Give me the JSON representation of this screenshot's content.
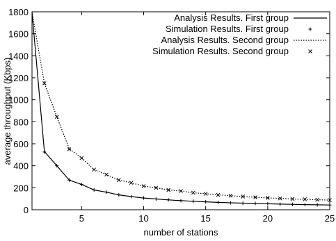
{
  "chart_data": {
    "type": "line",
    "title": "",
    "xlabel": "number of stations",
    "ylabel": "average throughput (Kbps)",
    "xlim": [
      1,
      25
    ],
    "ylim": [
      0,
      1800
    ],
    "xticks": [
      5,
      10,
      15,
      20,
      25
    ],
    "yticks": [
      0,
      200,
      400,
      600,
      800,
      1000,
      1200,
      1400,
      1600,
      1800
    ],
    "grid": false,
    "legend_position": "top-right",
    "series": [
      {
        "name": "Analysis Results. First group",
        "style": "solid-line",
        "x": [
          1,
          2,
          3,
          4,
          5,
          6,
          7,
          8,
          9,
          10,
          11,
          12,
          13,
          14,
          15,
          16,
          17,
          18,
          19,
          20,
          21,
          22,
          23,
          24,
          25
        ],
        "y": [
          1800,
          530,
          400,
          270,
          230,
          180,
          160,
          135,
          120,
          107,
          98,
          90,
          83,
          77,
          72,
          67,
          63,
          60,
          57,
          54,
          51,
          49,
          47,
          45,
          43
        ]
      },
      {
        "name": "Simulation Results. First group",
        "style": "plus-markers",
        "x": [
          2,
          3,
          4,
          5,
          6,
          7,
          8,
          9,
          10,
          11,
          12,
          13,
          14,
          15,
          16,
          17,
          18,
          19,
          20,
          21,
          22,
          23,
          24,
          25
        ],
        "y": [
          525,
          400,
          270,
          230,
          180,
          160,
          135,
          120,
          107,
          98,
          90,
          83,
          77,
          72,
          67,
          63,
          60,
          57,
          54,
          51,
          49,
          47,
          45,
          43
        ]
      },
      {
        "name": "Analysis Results. Second group",
        "style": "dotted-line",
        "x": [
          1,
          2,
          3,
          4,
          5,
          6,
          7,
          8,
          9,
          10,
          11,
          12,
          13,
          14,
          15,
          16,
          17,
          18,
          19,
          20,
          21,
          22,
          23,
          24,
          25
        ],
        "y": [
          1800,
          1150,
          845,
          555,
          470,
          365,
          320,
          270,
          245,
          215,
          200,
          180,
          170,
          155,
          145,
          135,
          128,
          120,
          113,
          108,
          103,
          98,
          95,
          91,
          88
        ]
      },
      {
        "name": "Simulation Results. Second group",
        "style": "x-markers",
        "x": [
          2,
          3,
          4,
          5,
          6,
          7,
          8,
          9,
          10,
          11,
          12,
          13,
          14,
          15,
          16,
          17,
          18,
          19,
          20,
          21,
          22,
          23,
          24,
          25
        ],
        "y": [
          1150,
          845,
          550,
          470,
          365,
          320,
          270,
          245,
          215,
          200,
          180,
          170,
          155,
          145,
          135,
          128,
          120,
          113,
          108,
          103,
          98,
          95,
          91,
          88
        ]
      }
    ]
  }
}
